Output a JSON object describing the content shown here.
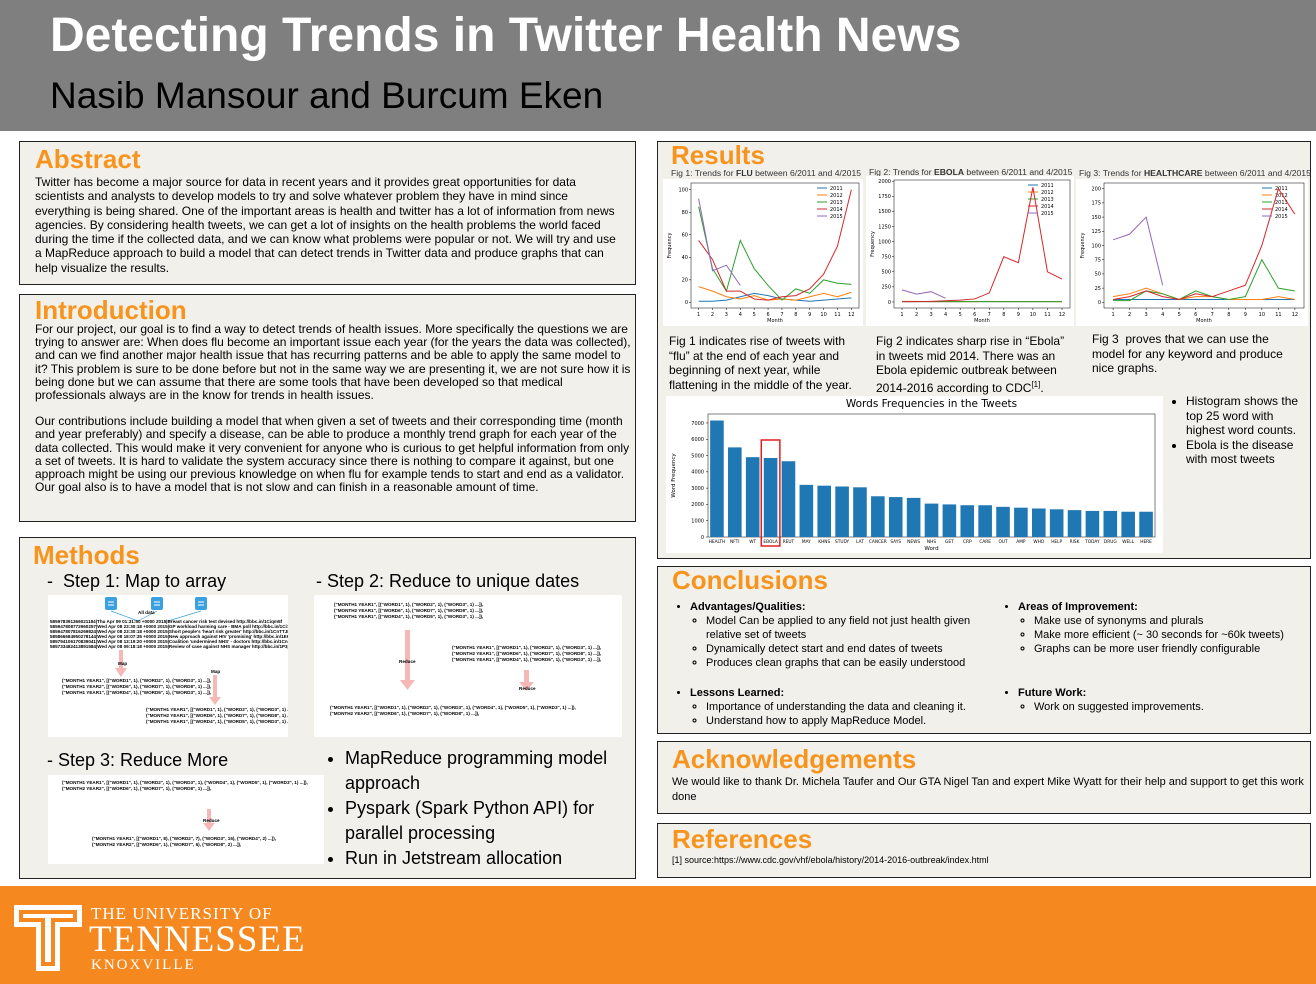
{
  "header": {
    "title": "Detecting Trends in Twitter Health News",
    "authors": "Nasib Mansour and Burcum Eken"
  },
  "abstract": {
    "heading": "Abstract",
    "text": "Twitter has become a major source for data in recent years and it provides great opportunities for data scientists and analysts to develop models to try and solve whatever problem they have in mind since everything is being shared. One of the important areas is health and twitter has a lot of information from news agencies. By considering health tweets, we can get a lot of insights on the health problems the world faced during the time if the collected data, and we can know what problems were popular or not. We will try and use a MapReduce approach to build a model that can detect trends in Twitter data and produce graphs that can help visualize the results."
  },
  "introduction": {
    "heading": "Introduction",
    "paragraphs": [
      "For our project, our goal is to find a way to detect trends of health issues. More specifically the questions we are trying to answer are: When does flu become an important issue each year (for the years the data was collected), and can we find another major health issue that has recurring patterns and be able to apply the same model to it? This problem is sure to be done before but not in the same way we are presenting it, we are not sure how it is being done but we can assume that there are some tools that have been developed so that medical professionals always are in the know for trends in health issues.",
      "Our contributions include building a model that when given a set of tweets and their corresponding time (month and year preferably) and specify a disease, can be able to produce a monthly trend graph for each year of the data collected. This would make it very convenient for anyone who is curious to get helpful information from only a set of tweets. It is hard to validate the system accuracy since there is nothing to compare it against, but one approach might be using our previous knowledge on when flu for example tends to start and end as a validator. Our goal also is to have a model that is not slow and can finish in a reasonable amount of time."
    ]
  },
  "methods": {
    "heading": "Methods",
    "steps": [
      {
        "label": "-  Step 1: Map to array",
        "lines": [
          "All data",
          "585978391366021184|Thu Apr 09 01:31:50 +0000 2015|Breast cancer risk test devised http://bbc.in/1Ciqm5f",
          "585947808772960257|Wed Apr 08 23:30:18 +0000 2015|GP workload harming care - BMA poll http://bbc.in/1Ci7BRx",
          "585947807816269824|Wed Apr 08 23:30:18 +0000 2015|Short people's 'heart risk greater' http://bbc.in/1CnTTJN",
          "585866684950278144|Wed Apr 08 18:07:35 +0000 2015|New approach against HIV 'promising' http://bbc.in/1E6jAjt",
          "585794106170839041|Wed Apr 08 13:19:20 +0000 2015|Coalition 'undermined NHS' - doctors http://bbc.in/1CnLwK7",
          "585733482413891584|Wed Apr 08 09:18:18 +0000 2015|Review of case against NHS manager http://bbc.in/1P3jiSu",
          "Map",
          "Map",
          "(\"MONTH1 YEAR1\", [(\"WORD1\", 1), (\"WORD2\", 1), (\"WORD3\", 1) ...]),",
          "(\"MONTH1 YEAR2\", [(\"WORD6\", 1), (\"WORD7\", 1), (\"WORD8\", 1) ...]),",
          "(\"MONTH1 YEAR1\", [(\"WORD4\", 1), (\"WORD5\", 1), (\"WORD3\", 1) ...]),",
          "(\"MONTH1 YEAR1\", [(\"WORD1\", 1), (\"WORD2\", 1), (\"WORD3\", 1) ...]),",
          "(\"MONTH2 YEAR1\", [(\"WORD6\", 1), (\"WORD7\", 1), (\"WORD8\", 1) ...]),",
          "(\"MONTH1 YEAR1\", [(\"WORD4\", 1), (\"WORD5\", 1), (\"WORD3\", 1) ...]),"
        ]
      },
      {
        "label": "- Step 2: Reduce to unique dates",
        "lines": [
          "(\"MONTH1 YEAR1\", [(\"WORD1\", 1), (\"WORD2\", 1), (\"WORD3\", 1) ...]),",
          "(\"MONTH2 YEAR1\", [(\"WORD6\", 1), (\"WORD7\", 1), (\"WORD8\", 1) ...]),",
          "(\"MONTH1 YEAR1\", [(\"WORD4\", 1), (\"WORD5\", 1), (\"WORD3\", 1) ...]),",
          "(\"MONTH1 YEAR1\", [(\"WORD1\", 1), (\"WORD2\", 1), (\"WORD3\", 1) ...]),",
          "(\"MONTH2 YEAR1\", [(\"WORD6\", 1), (\"WORD7\", 1), (\"WORD8\", 1) ...]),",
          "(\"MONTH1 YEAR1\", [(\"WORD4\", 1), (\"WORD5\", 1), (\"WORD3\", 1) ...]),",
          "Reduce",
          "Reduce",
          "(\"MONTH1 YEAR1\", [(\"WORD1\", 1), (\"WORD2\", 1), (\"WORD3\", 1), (\"WORD4\", 1), (\"WORD5\", 1), (\"WORD3\", 1) ...]),",
          "(\"MONTH2 YEAR2\", [(\"WORD6\", 1), (\"WORD7\", 1), (\"WORD8\", 1) ...]),"
        ]
      },
      {
        "label": "- Step 3: Reduce More",
        "lines": [
          "(\"MONTH1 YEAR1\", [(\"WORD1\", 1), (\"WORD2\", 1), (\"WORD3\", 1), (\"WORD4\", 1), (\"WORD5\", 1), (\"WORD3\", 1) ...]),",
          "(\"MONTH2 YEAR2\", [(\"WORD6\", 1), (\"WORD7\", 1), (\"WORD8\", 1) ...]),",
          "Reduce",
          "(\"MONTH1 YEAR1\", [(\"WORD1\", 8), (\"WORD2\", 7), (\"WORD3\", 15), (\"WORD4\", 2) ...]),",
          "(\"MONTH2 YEAR2\", [(\"WORD6\", 1), (\"WORD7\", 6), (\"WORD8\", 2) ...]),"
        ]
      }
    ],
    "bullets": [
      "MapReduce programming model approach",
      "Pyspark (Spark Python API) for parallel processing",
      "Run in Jetstream allocation"
    ]
  },
  "results": {
    "heading": "Results",
    "charts": [
      {
        "type": "line",
        "title_parts": [
          "Fig 1: Trends for ",
          "FLU",
          " between 6/2011 and 4/2015"
        ],
        "xlabel": "Month",
        "ylabel": "Frequency",
        "x": [
          1,
          2,
          3,
          4,
          5,
          6,
          7,
          8,
          9,
          10,
          11,
          12
        ],
        "xlim": [
          0.45,
          12.55
        ],
        "xticks": [
          1,
          2,
          3,
          4,
          5,
          6,
          7,
          8,
          9,
          10,
          11,
          12
        ],
        "ylim": [
          -5,
          106
        ],
        "yticks": [
          0,
          20,
          40,
          60,
          80,
          100
        ],
        "series": [
          {
            "name": "2011",
            "color": "#1f77b4",
            "values": [
              1,
              1,
              2,
              5,
              8,
              6,
              3,
              2,
              1,
              2,
              3,
              4
            ]
          },
          {
            "name": "2012",
            "color": "#ff7f0e",
            "values": [
              14,
              10,
              5,
              3,
              6,
              2,
              3,
              2,
              5,
              8,
              5,
              9
            ]
          },
          {
            "name": "2013",
            "color": "#2ca02c",
            "values": [
              85,
              30,
              10,
              55,
              30,
              15,
              2,
              12,
              8,
              20,
              17,
              16
            ]
          },
          {
            "name": "2014",
            "color": "#d62728",
            "values": [
              55,
              38,
              10,
              10,
              3,
              2,
              5,
              6,
              12,
              25,
              50,
              100
            ]
          },
          {
            "name": "2015",
            "color": "#9467bd",
            "values": [
              92,
              28,
              33,
              15,
              null,
              null,
              null,
              null,
              null,
              null,
              null,
              null
            ]
          }
        ]
      },
      {
        "type": "line",
        "title_parts": [
          "Fig 2: Trends for ",
          "EBOLA",
          " between 6/2011 and 4/2015"
        ],
        "xlabel": "Month",
        "ylabel": "Frequency",
        "x": [
          1,
          2,
          3,
          4,
          5,
          6,
          7,
          8,
          9,
          10,
          11,
          12
        ],
        "xlim": [
          0.45,
          12.55
        ],
        "xticks": [
          1,
          2,
          3,
          4,
          5,
          6,
          7,
          8,
          9,
          10,
          11,
          12
        ],
        "ylim": [
          -100,
          2020
        ],
        "yticks": [
          0,
          250,
          500,
          750,
          1000,
          1250,
          1500,
          1750,
          2000
        ],
        "series": [
          {
            "name": "2011",
            "color": "#1f77b4",
            "values": [
              5,
              5,
              5,
              5,
              5,
              5,
              5,
              5,
              5,
              5,
              5,
              5
            ]
          },
          {
            "name": "2012",
            "color": "#ff7f0e",
            "values": [
              10,
              10,
              5,
              5,
              5,
              5,
              10,
              5,
              5,
              5,
              5,
              5
            ]
          },
          {
            "name": "2013",
            "color": "#2ca02c",
            "values": [
              5,
              5,
              5,
              5,
              5,
              5,
              5,
              5,
              5,
              5,
              5,
              5
            ]
          },
          {
            "name": "2014",
            "color": "#d62728",
            "values": [
              5,
              5,
              10,
              20,
              30,
              50,
              150,
              750,
              650,
              1900,
              500,
              380
            ]
          },
          {
            "name": "2015",
            "color": "#9467bd",
            "values": [
              200,
              130,
              170,
              60,
              null,
              null,
              null,
              null,
              null,
              null,
              null,
              null
            ]
          }
        ]
      },
      {
        "type": "line",
        "title_parts": [
          "Fig 3: Trends for ",
          "HEALTHCARE",
          " between 6/2011 and 4/2015"
        ],
        "xlabel": "Month",
        "ylabel": "Frequency",
        "x": [
          1,
          2,
          3,
          4,
          5,
          6,
          7,
          8,
          9,
          10,
          11,
          12
        ],
        "xlim": [
          0.45,
          12.55
        ],
        "xticks": [
          1,
          2,
          3,
          4,
          5,
          6,
          7,
          8,
          9,
          10,
          11,
          12
        ],
        "ylim": [
          -10,
          210
        ],
        "yticks": [
          0,
          25,
          50,
          75,
          100,
          125,
          150,
          175,
          200
        ],
        "series": [
          {
            "name": "2011",
            "color": "#1f77b4",
            "values": [
              5,
              5,
              5,
              5,
              5,
              5,
              5,
              5,
              5,
              5,
              5,
              5
            ]
          },
          {
            "name": "2012",
            "color": "#ff7f0e",
            "values": [
              10,
              15,
              25,
              15,
              5,
              10,
              10,
              5,
              5,
              5,
              10,
              5
            ]
          },
          {
            "name": "2013",
            "color": "#2ca02c",
            "values": [
              3,
              3,
              20,
              15,
              5,
              20,
              10,
              5,
              10,
              75,
              25,
              20
            ]
          },
          {
            "name": "2014",
            "color": "#d62728",
            "values": [
              5,
              10,
              20,
              10,
              5,
              15,
              10,
              20,
              30,
              100,
              200,
              155
            ]
          },
          {
            "name": "2015",
            "color": "#9467bd",
            "values": [
              110,
              120,
              150,
              30,
              null,
              null,
              null,
              null,
              null,
              null,
              null,
              null
            ]
          }
        ]
      }
    ],
    "captions": [
      {
        "text": "Fig 1 indicates rise of tweets with “flu” at the end of each year and beginning of next year, while flattening in the middle of the year."
      },
      {
        "text": "Fig 2 indicates sharp rise in “Ebola” in tweets mid 2014. There was an Ebola epidemic outbreak between 2014-2016 according to CDC",
        "sup": "[1]",
        "after": "."
      },
      {
        "text": "Fig 3  proves that we can use the model for any keyword and produce nice graphs."
      }
    ],
    "bar_chart": {
      "type": "bar",
      "title": "Words Frequencies in the Tweets",
      "xlabel": "Word",
      "ylabel": "Word Frequency",
      "color": "#1f77b4",
      "highlight": "EBOLA",
      "categories": [
        "HEALTH",
        "NFTI",
        "WT",
        "EBOLA",
        "REUT",
        "MAY",
        "KHNS",
        "STUDY",
        "LAT",
        "CANCER",
        "SAYS",
        "NEWS",
        "NHS",
        "GET",
        "CRP",
        "CARE",
        "OUT",
        "AMP",
        "WHO",
        "HELP",
        "RISK",
        "TODAY",
        "DRUG",
        "WELL",
        "HERE"
      ],
      "values": [
        7150,
        5500,
        4900,
        4850,
        4650,
        3200,
        3150,
        3100,
        3050,
        2500,
        2450,
        2400,
        2050,
        2000,
        1950,
        1950,
        1850,
        1800,
        1750,
        1700,
        1650,
        1600,
        1600,
        1550,
        1550
      ],
      "ylim": [
        0,
        7550
      ],
      "yticks": [
        0,
        1000,
        2000,
        3000,
        4000,
        5000,
        6000,
        7000
      ]
    },
    "bullets": [
      "Histogram shows the top 25 word with highest word counts.",
      "Ebola is the disease with most tweets"
    ]
  },
  "conclusions": {
    "heading": "Conclusions",
    "groups": [
      {
        "title": "Advantages/Qualities:",
        "items": [
          "Model Can be applied to any field not just health given relative set of tweets",
          "Dynamically detect start and end dates of tweets",
          "Produces clean graphs that can be easily understood"
        ]
      },
      {
        "title": "Lessons Learned:",
        "items": [
          "Importance of understanding the data and cleaning it.",
          "Understand how to apply MapReduce Model."
        ]
      },
      {
        "title": "Areas of Improvement:",
        "items": [
          "Make use of synonyms and plurals",
          "Make more efficient (~ 30 seconds for ~60k tweets)",
          "Graphs can be more user friendly configurable"
        ]
      },
      {
        "title": "Future Work:",
        "items": [
          "Work on suggested improvements."
        ]
      }
    ]
  },
  "acknowledgements": {
    "heading": "Acknowledgements",
    "text": "We would like to thank Dr. Michela Taufer and Our GTA Nigel Tan and expert Mike Wyatt for their help and support to get this work done"
  },
  "references": {
    "heading": "References",
    "items": [
      "[1] source:https://www.cdc.gov/vhf/ebola/history/2014-2016-outbreak/index.html"
    ]
  },
  "footer": {
    "logo_lines": [
      "THE UNIVERSITY OF",
      "TENNESSEE",
      "KNOXVILLE"
    ]
  }
}
